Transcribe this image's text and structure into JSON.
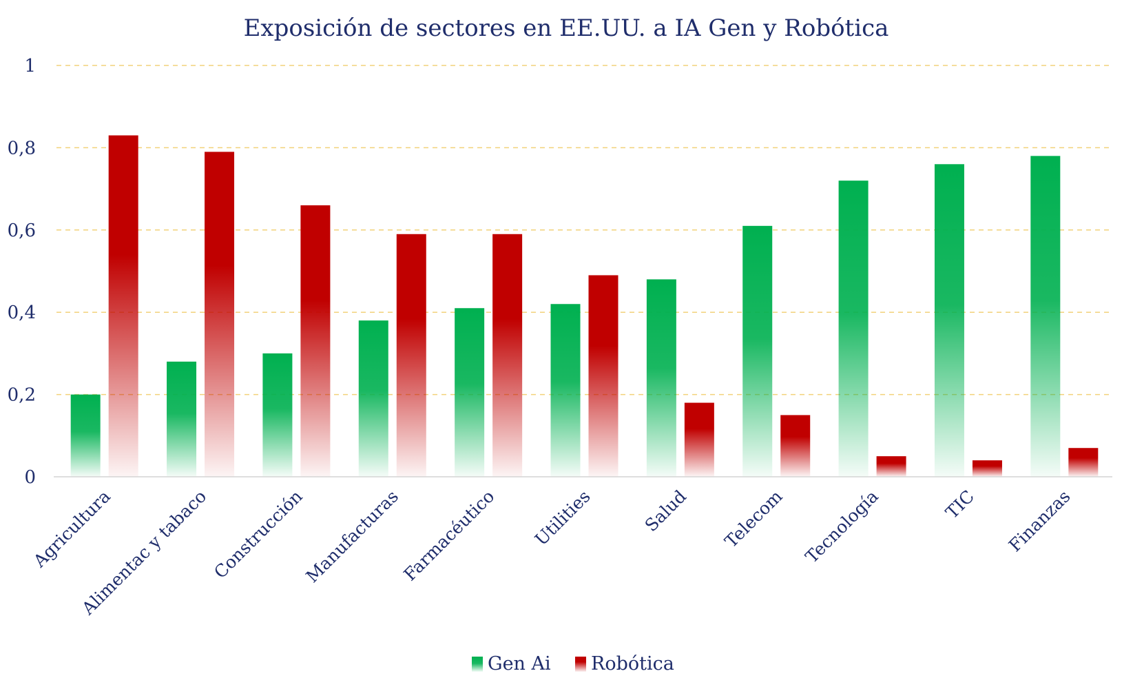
{
  "chart_data": {
    "type": "bar",
    "title": "Exposición de sectores en EE.UU. a IA Gen y Robótica",
    "categories": [
      "Agricultura",
      "Alimentac y tabaco",
      "Construcción",
      "Manufacturas",
      "Farmacéutico",
      "Utilities",
      "Salud",
      "Telecom",
      "Tecnología",
      "TIC",
      "Finanzas"
    ],
    "series": [
      {
        "name": "Gen Ai",
        "color": "#00b050",
        "values": [
          0.2,
          0.28,
          0.3,
          0.38,
          0.41,
          0.42,
          0.48,
          0.61,
          0.72,
          0.76,
          0.78
        ]
      },
      {
        "name": "Robótica",
        "color": "#c00000",
        "values": [
          0.83,
          0.79,
          0.66,
          0.59,
          0.59,
          0.49,
          0.18,
          0.15,
          0.05,
          0.04,
          0.07
        ]
      }
    ],
    "yticks": [
      "0",
      "0,2",
      "0,4",
      "0,6",
      "0,8",
      "1"
    ],
    "ytick_values": [
      0,
      0.2,
      0.4,
      0.6,
      0.8,
      1
    ],
    "ylim": [
      0,
      1
    ],
    "xlabel": "",
    "ylabel": "",
    "grid": true,
    "legend_position": "bottom"
  }
}
